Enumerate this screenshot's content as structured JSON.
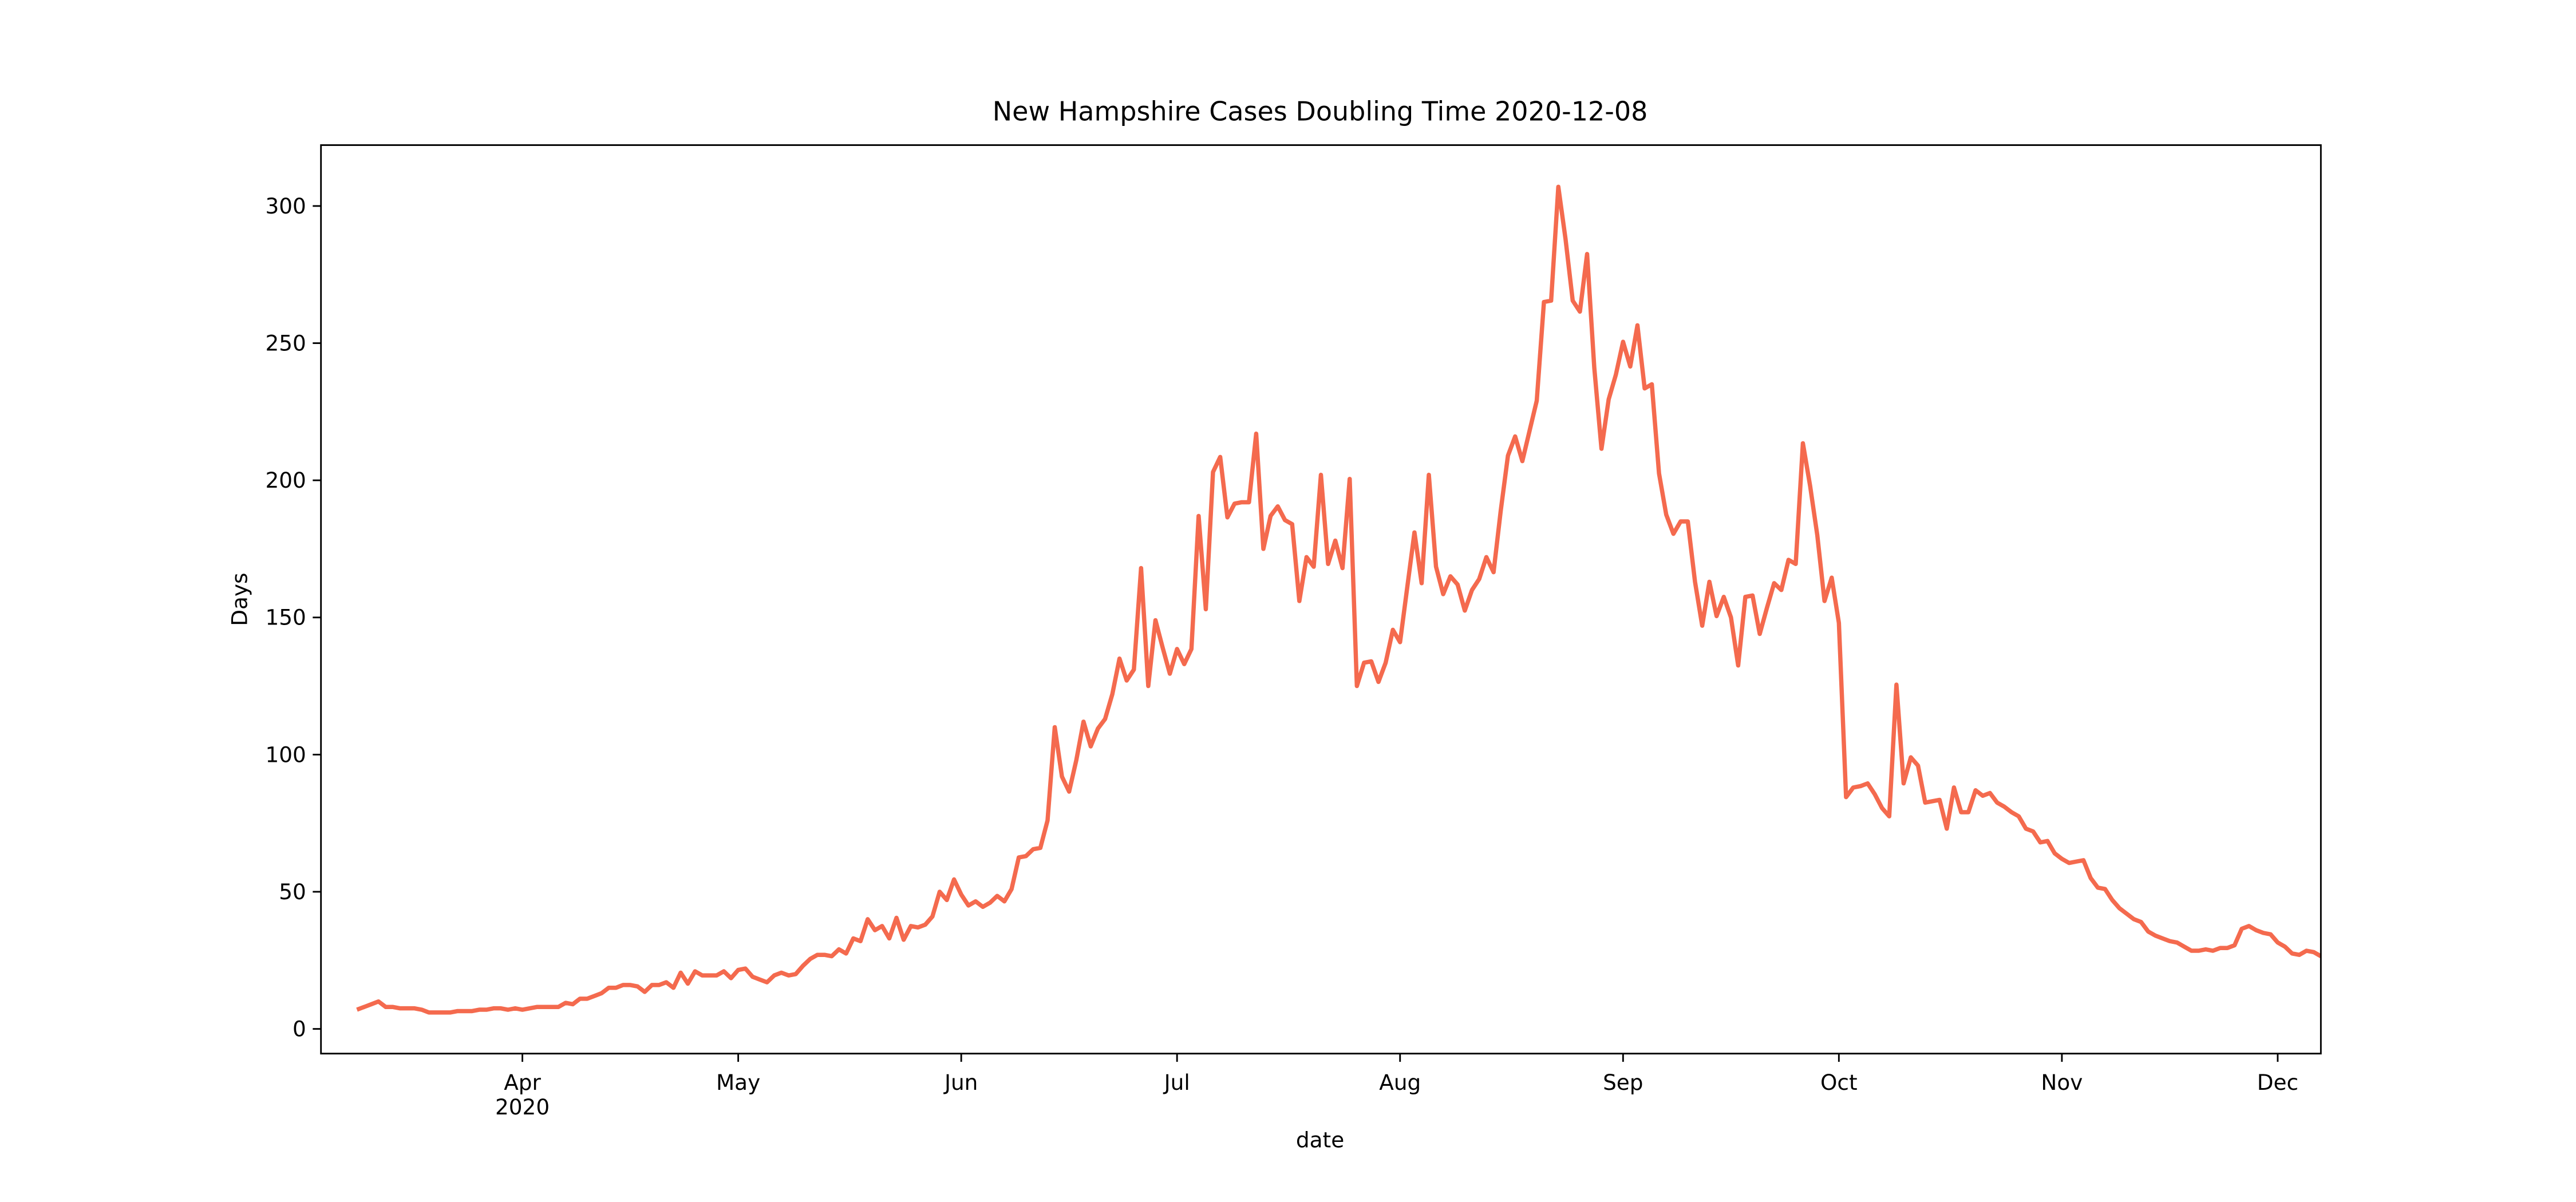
{
  "chart_data": {
    "type": "line",
    "title": "New Hampshire Cases Doubling Time 2020-12-08",
    "x_label": "date",
    "y_label": "Days",
    "xlim": [
      "2020-03-04",
      "2020-12-07"
    ],
    "ylim": [
      -9,
      322.2
    ],
    "yticks": [
      0,
      50,
      100,
      150,
      200,
      250,
      300
    ],
    "xticks": [
      {
        "value": "2020-04-01",
        "label": "Apr",
        "sublabel": "2020"
      },
      {
        "value": "2020-05-01",
        "label": "May"
      },
      {
        "value": "2020-06-01",
        "label": "Jun"
      },
      {
        "value": "2020-07-01",
        "label": "Jul"
      },
      {
        "value": "2020-08-01",
        "label": "Aug"
      },
      {
        "value": "2020-09-01",
        "label": "Sep"
      },
      {
        "value": "2020-10-01",
        "label": "Oct"
      },
      {
        "value": "2020-11-01",
        "label": "Nov"
      },
      {
        "value": "2020-12-01",
        "label": "Dec"
      }
    ],
    "x": [
      "2020-03-09",
      "2020-03-10",
      "2020-03-11",
      "2020-03-12",
      "2020-03-13",
      "2020-03-14",
      "2020-03-15",
      "2020-03-16",
      "2020-03-17",
      "2020-03-18",
      "2020-03-19",
      "2020-03-20",
      "2020-03-21",
      "2020-03-22",
      "2020-03-23",
      "2020-03-24",
      "2020-03-25",
      "2020-03-26",
      "2020-03-27",
      "2020-03-28",
      "2020-03-29",
      "2020-03-30",
      "2020-03-31",
      "2020-04-01",
      "2020-04-02",
      "2020-04-03",
      "2020-04-04",
      "2020-04-05",
      "2020-04-06",
      "2020-04-07",
      "2020-04-08",
      "2020-04-09",
      "2020-04-10",
      "2020-04-11",
      "2020-04-12",
      "2020-04-13",
      "2020-04-14",
      "2020-04-15",
      "2020-04-16",
      "2020-04-17",
      "2020-04-18",
      "2020-04-19",
      "2020-04-20",
      "2020-04-21",
      "2020-04-22",
      "2020-04-23",
      "2020-04-24",
      "2020-04-25",
      "2020-04-26",
      "2020-04-27",
      "2020-04-28",
      "2020-04-29",
      "2020-04-30",
      "2020-05-01",
      "2020-05-02",
      "2020-05-03",
      "2020-05-04",
      "2020-05-05",
      "2020-05-06",
      "2020-05-07",
      "2020-05-08",
      "2020-05-09",
      "2020-05-10",
      "2020-05-11",
      "2020-05-12",
      "2020-05-13",
      "2020-05-14",
      "2020-05-15",
      "2020-05-16",
      "2020-05-17",
      "2020-05-18",
      "2020-05-19",
      "2020-05-20",
      "2020-05-21",
      "2020-05-22",
      "2020-05-23",
      "2020-05-24",
      "2020-05-25",
      "2020-05-26",
      "2020-05-27",
      "2020-05-28",
      "2020-05-29",
      "2020-05-30",
      "2020-05-31",
      "2020-06-01",
      "2020-06-02",
      "2020-06-03",
      "2020-06-04",
      "2020-06-05",
      "2020-06-06",
      "2020-06-07",
      "2020-06-08",
      "2020-06-09",
      "2020-06-10",
      "2020-06-11",
      "2020-06-12",
      "2020-06-13",
      "2020-06-14",
      "2020-06-15",
      "2020-06-16",
      "2020-06-17",
      "2020-06-18",
      "2020-06-19",
      "2020-06-20",
      "2020-06-21",
      "2020-06-22",
      "2020-06-23",
      "2020-06-24",
      "2020-06-25",
      "2020-06-26",
      "2020-06-27",
      "2020-06-28",
      "2020-06-29",
      "2020-06-30",
      "2020-07-01",
      "2020-07-02",
      "2020-07-03",
      "2020-07-04",
      "2020-07-05",
      "2020-07-06",
      "2020-07-07",
      "2020-07-08",
      "2020-07-09",
      "2020-07-10",
      "2020-07-11",
      "2020-07-12",
      "2020-07-13",
      "2020-07-14",
      "2020-07-15",
      "2020-07-16",
      "2020-07-17",
      "2020-07-18",
      "2020-07-19",
      "2020-07-20",
      "2020-07-21",
      "2020-07-22",
      "2020-07-23",
      "2020-07-24",
      "2020-07-25",
      "2020-07-26",
      "2020-07-27",
      "2020-07-28",
      "2020-07-29",
      "2020-07-30",
      "2020-07-31",
      "2020-08-01",
      "2020-08-02",
      "2020-08-03",
      "2020-08-04",
      "2020-08-05",
      "2020-08-06",
      "2020-08-07",
      "2020-08-08",
      "2020-08-09",
      "2020-08-10",
      "2020-08-11",
      "2020-08-12",
      "2020-08-13",
      "2020-08-14",
      "2020-08-15",
      "2020-08-16",
      "2020-08-17",
      "2020-08-18",
      "2020-08-19",
      "2020-08-20",
      "2020-08-21",
      "2020-08-22",
      "2020-08-23",
      "2020-08-24",
      "2020-08-25",
      "2020-08-26",
      "2020-08-27",
      "2020-08-28",
      "2020-08-29",
      "2020-08-30",
      "2020-08-31",
      "2020-09-01",
      "2020-09-02",
      "2020-09-03",
      "2020-09-04",
      "2020-09-05",
      "2020-09-06",
      "2020-09-07",
      "2020-09-08",
      "2020-09-09",
      "2020-09-10",
      "2020-09-11",
      "2020-09-12",
      "2020-09-13",
      "2020-09-14",
      "2020-09-15",
      "2020-09-16",
      "2020-09-17",
      "2020-09-18",
      "2020-09-19",
      "2020-09-20",
      "2020-09-21",
      "2020-09-22",
      "2020-09-23",
      "2020-09-24",
      "2020-09-25",
      "2020-09-26",
      "2020-09-27",
      "2020-09-28",
      "2020-09-29",
      "2020-09-30",
      "2020-10-01",
      "2020-10-02",
      "2020-10-03",
      "2020-10-04",
      "2020-10-05",
      "2020-10-06",
      "2020-10-07",
      "2020-10-08",
      "2020-10-09",
      "2020-10-10",
      "2020-10-11",
      "2020-10-12",
      "2020-10-13",
      "2020-10-14",
      "2020-10-15",
      "2020-10-16",
      "2020-10-17",
      "2020-10-18",
      "2020-10-19",
      "2020-10-20",
      "2020-10-21",
      "2020-10-22",
      "2020-10-23",
      "2020-10-24",
      "2020-10-25",
      "2020-10-26",
      "2020-10-27",
      "2020-10-28",
      "2020-10-29",
      "2020-10-30",
      "2020-10-31",
      "2020-11-01",
      "2020-11-02",
      "2020-11-03",
      "2020-11-04",
      "2020-11-05",
      "2020-11-06",
      "2020-11-07",
      "2020-11-08",
      "2020-11-09",
      "2020-11-10",
      "2020-11-11",
      "2020-11-12",
      "2020-11-13",
      "2020-11-14",
      "2020-11-15",
      "2020-11-16",
      "2020-11-17",
      "2020-11-18",
      "2020-11-19",
      "2020-11-20",
      "2020-11-21",
      "2020-11-22",
      "2020-11-23",
      "2020-11-24",
      "2020-11-25",
      "2020-11-26",
      "2020-11-27",
      "2020-11-28",
      "2020-11-29",
      "2020-11-30",
      "2020-12-01",
      "2020-12-02",
      "2020-12-03",
      "2020-12-04",
      "2020-12-05",
      "2020-12-06",
      "2020-12-07"
    ],
    "series": [
      {
        "color": "#f46a4e",
        "values": [
          7,
          8,
          9,
          10,
          8,
          8,
          7.5,
          7.5,
          7.5,
          7,
          6,
          6,
          6,
          6,
          6.5,
          6.5,
          6.5,
          7,
          7,
          7.5,
          7.5,
          7,
          7.5,
          7,
          7.5,
          8,
          8,
          8,
          8,
          9.5,
          9,
          11,
          11,
          12,
          13,
          15,
          15,
          16,
          16,
          15.5,
          13.5,
          16,
          16,
          17,
          15,
          20.5,
          16.5,
          21,
          19.5,
          19.5,
          19.5,
          21,
          18.5,
          21.5,
          22,
          19,
          18,
          17,
          19.5,
          20.5,
          19.5,
          20,
          23,
          25.5,
          27,
          27,
          26.5,
          29,
          27.5,
          33,
          32,
          40,
          36,
          37.5,
          33,
          40.5,
          32.5,
          37.5,
          37,
          38,
          41,
          50,
          47,
          54.5,
          49,
          45,
          46.5,
          44.5,
          46,
          48.5,
          46.5,
          51,
          62.5,
          63,
          65.5,
          66,
          76,
          110,
          92,
          86.5,
          98,
          112,
          103,
          109.5,
          113,
          122,
          135,
          127,
          131,
          168,
          125,
          149,
          139,
          129.5,
          138.5,
          133,
          138.5,
          187,
          153,
          203,
          208.5,
          186.5,
          191.5,
          192,
          192,
          217,
          175,
          187,
          190.5,
          185.5,
          184,
          156,
          172,
          168.5,
          202,
          169.5,
          178,
          168,
          200.5,
          125,
          133.5,
          134,
          126.5,
          133.5,
          145.5,
          141,
          161,
          181,
          162.5,
          202,
          168.5,
          158.5,
          165,
          162,
          152.5,
          160,
          164,
          172,
          166.5,
          189,
          209,
          216,
          207,
          218,
          229,
          265,
          265.5,
          307,
          288,
          265.5,
          261.5,
          282.5,
          241,
          211.5,
          229.5,
          238.5,
          250.5,
          241.5,
          256.5,
          233.5,
          235,
          202.5,
          187.5,
          180.5,
          185,
          185,
          163,
          147,
          163,
          150.5,
          157.5,
          150,
          132.5,
          157.5,
          158,
          144,
          153.5,
          162.5,
          160,
          171,
          169.5,
          213.5,
          198,
          180,
          156,
          164.5,
          148,
          84.5,
          88,
          88.5,
          89.5,
          85.5,
          80.5,
          77.5,
          125.5,
          89.5,
          99,
          96,
          82.5,
          83,
          83.5,
          73,
          88,
          79,
          79,
          87,
          85,
          86,
          82.5,
          81,
          79,
          77.5,
          73,
          72,
          68,
          68.5,
          64,
          62,
          60.5,
          61,
          61.5,
          55,
          51.5,
          51,
          47,
          44,
          42,
          40,
          39,
          35.5,
          34,
          33,
          32,
          31.5,
          30,
          28.5,
          28.5,
          29,
          28.5,
          29.5,
          29.5,
          30.5,
          36.5,
          37.5,
          36,
          35,
          34.5,
          31.5,
          30,
          27.5,
          27,
          28.5,
          28,
          26.5
        ]
      }
    ]
  }
}
